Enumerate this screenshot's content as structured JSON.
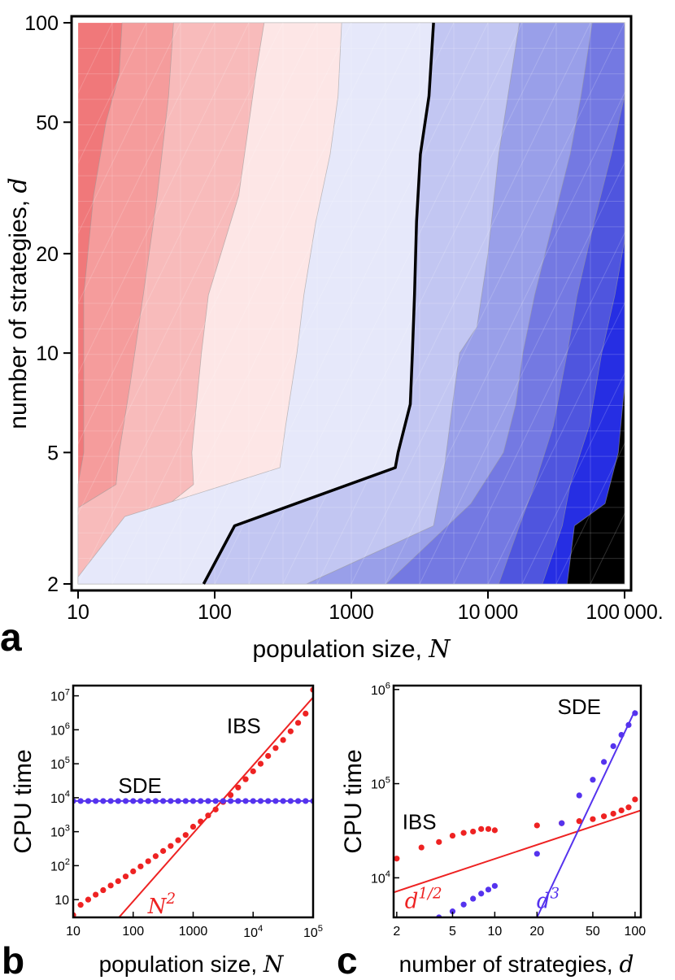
{
  "chart_data": [
    {
      "id": "a",
      "type": "heatmap",
      "panel_label": "a",
      "xlabel_text": "population size, ",
      "xlabel_var": "N",
      "ylabel_text": "number of strategies, ",
      "ylabel_var": "d",
      "xscale": "log",
      "yscale": "log",
      "xlim": [
        10,
        100000
      ],
      "ylim": [
        2,
        100
      ],
      "xticks": [
        10,
        100,
        1000,
        10000,
        100000
      ],
      "xtick_labels": [
        "10",
        "100",
        "1000",
        "10 000",
        "100 000."
      ],
      "yticks": [
        2,
        5,
        10,
        20,
        50,
        100
      ],
      "ytick_labels": [
        "2",
        "5",
        "10",
        "20",
        "50",
        "100"
      ],
      "colors": [
        "#f0787a",
        "#f59c9c",
        "#f8bbbb",
        "#fde6e6",
        "#e6e8fa",
        "#c2c6f2",
        "#999fe9",
        "#7479e2",
        "#4f55de",
        "#262ee3"
      ],
      "contours": [
        [
          [
            21,
            100
          ],
          [
            20,
            70
          ],
          [
            16,
            50
          ],
          [
            13,
            30
          ],
          [
            11,
            15
          ],
          [
            11,
            5
          ],
          [
            10,
            4
          ]
        ],
        [
          [
            50,
            100
          ],
          [
            46,
            60
          ],
          [
            38,
            30
          ],
          [
            30,
            15
          ],
          [
            24,
            8
          ],
          [
            20,
            5
          ],
          [
            19,
            4
          ],
          [
            10,
            3.4
          ]
        ],
        [
          [
            230,
            100
          ],
          [
            200,
            70
          ],
          [
            150,
            30
          ],
          [
            90,
            15
          ],
          [
            80,
            10
          ],
          [
            68,
            5
          ],
          [
            70,
            4
          ],
          [
            10,
            2.1
          ]
        ],
        [
          [
            850,
            100
          ],
          [
            800,
            60
          ],
          [
            700,
            40
          ],
          [
            550,
            25
          ],
          [
            450,
            15
          ],
          [
            400,
            10
          ],
          [
            330,
            6
          ],
          [
            300,
            4.5
          ],
          [
            22,
            3.2
          ],
          [
            10,
            2.1
          ]
        ],
        [
          [
            4000,
            100
          ],
          [
            3700,
            60
          ],
          [
            3200,
            40
          ],
          [
            3000,
            25
          ],
          [
            2900,
            15
          ],
          [
            2800,
            10
          ],
          [
            2700,
            7
          ],
          [
            2200,
            5
          ],
          [
            2100,
            4.5
          ],
          [
            140,
            3
          ],
          [
            83,
            2
          ]
        ],
        [
          [
            17000,
            100
          ],
          [
            14000,
            60
          ],
          [
            12000,
            40
          ],
          [
            10000,
            20
          ],
          [
            8300,
            12
          ],
          [
            6200,
            10
          ],
          [
            5500,
            7
          ],
          [
            4800,
            4.5
          ],
          [
            4000,
            3
          ],
          [
            470,
            2
          ]
        ],
        [
          [
            58000,
            100
          ],
          [
            48000,
            60
          ],
          [
            40000,
            40
          ],
          [
            30000,
            25
          ],
          [
            22000,
            15
          ],
          [
            18000,
            10
          ],
          [
            16000,
            7
          ],
          [
            13000,
            5
          ],
          [
            7500,
            3.5
          ],
          [
            1800,
            2
          ]
        ],
        [
          [
            100000,
            60
          ],
          [
            80000,
            40
          ],
          [
            60000,
            25
          ],
          [
            45000,
            15
          ],
          [
            38000,
            10
          ],
          [
            30000,
            6
          ],
          [
            22000,
            4
          ],
          [
            17000,
            3
          ],
          [
            12000,
            2
          ]
        ],
        [
          [
            100000,
            22
          ],
          [
            85000,
            15
          ],
          [
            68000,
            10
          ],
          [
            55000,
            6
          ],
          [
            40000,
            4
          ],
          [
            35000,
            3
          ],
          [
            25000,
            2
          ]
        ],
        [
          [
            100000,
            8
          ],
          [
            90000,
            5
          ],
          [
            72000,
            3.5
          ],
          [
            43000,
            3
          ],
          [
            38000,
            2
          ]
        ]
      ],
      "critical_index": 4
    },
    {
      "id": "b",
      "type": "scatter",
      "panel_label": "b",
      "ylabel": "CPU time",
      "xlabel_text": "population size, ",
      "xlabel_var": "N",
      "xscale": "log",
      "yscale": "log",
      "xlim": [
        10,
        100000
      ],
      "ylim": [
        3,
        20000000
      ],
      "xtick_labels": [
        "10",
        "100",
        "1000"
      ],
      "xtick_values": [
        10,
        100,
        1000
      ],
      "xtick_pow": [
        {
          "base": "10",
          "exp": "4",
          "value": 10000
        },
        {
          "base": "10",
          "exp": "5",
          "value": 100000
        }
      ],
      "ytick_plain": [
        {
          "label": "10",
          "value": 10
        }
      ],
      "ytick_pow": [
        {
          "base": "10",
          "exp": "2",
          "value": 100
        },
        {
          "base": "10",
          "exp": "3",
          "value": 1000
        },
        {
          "base": "10",
          "exp": "4",
          "value": 10000
        },
        {
          "base": "10",
          "exp": "5",
          "value": 100000
        },
        {
          "base": "10",
          "exp": "6",
          "value": 1000000
        },
        {
          "base": "10",
          "exp": "7",
          "value": 10000000
        }
      ],
      "series": [
        {
          "name": "IBS",
          "color": "#ee2222",
          "x": [
            10,
            13.3,
            17.8,
            23.7,
            31.6,
            42.2,
            56.2,
            75,
            100,
            133,
            178,
            237,
            316,
            422,
            562,
            750,
            1000,
            1334,
            1778,
            2371,
            3162,
            4217,
            5623,
            7499,
            10000,
            13335,
            17783,
            23714,
            31623,
            42170,
            56234,
            74989,
            100000
          ],
          "y": [
            3.5,
            7,
            10,
            14,
            19,
            26,
            35,
            48,
            68,
            95,
            135,
            190,
            270,
            380,
            560,
            800,
            1400,
            2000,
            3000,
            4500,
            7500,
            12000,
            20000,
            35000,
            60000,
            100000,
            170000,
            290000,
            500000,
            900000,
            1600000,
            3000000,
            15000000
          ]
        },
        {
          "name": "SDE",
          "color": "#5533ee",
          "x": [
            10,
            13.3,
            17.8,
            23.7,
            31.6,
            42.2,
            56.2,
            75,
            100,
            133,
            178,
            237,
            316,
            422,
            562,
            750,
            1000,
            1334,
            1778,
            2371,
            3162,
            4217,
            5623,
            7499,
            10000,
            13335,
            17783,
            23714,
            31623,
            42170,
            56234,
            74989,
            100000
          ],
          "y": [
            8000,
            8000,
            8000,
            8000,
            8000,
            8000,
            8000,
            8000,
            8000,
            8000,
            8000,
            8000,
            8000,
            8000,
            8000,
            8000,
            8000,
            8000,
            8000,
            8000,
            8000,
            8000,
            8000,
            8000,
            8000,
            8000,
            8000,
            8000,
            8000,
            8000,
            8000,
            8000,
            8000
          ]
        }
      ],
      "fit_lines": [
        {
          "name": "N2",
          "color": "#ee2222",
          "x": [
            58,
            100000
          ],
          "y": [
            3,
            9000000
          ]
        },
        {
          "name": "SDE-fit",
          "color": "#5533ee",
          "x": [
            10,
            100000
          ],
          "y": [
            8000,
            8000
          ]
        }
      ],
      "annotations": [
        {
          "text": "IBS",
          "color": "#ee2222",
          "x": 7000,
          "y": 800000
        },
        {
          "text": "SDE",
          "color": "#5533ee",
          "x": 130,
          "y": 14000
        }
      ],
      "fit_label": {
        "base": "N",
        "exp": "2",
        "color": "#ee2222",
        "x": 300,
        "y": 4
      }
    },
    {
      "id": "c",
      "type": "scatter",
      "panel_label": "c",
      "ylabel": "CPU time",
      "xlabel_text": "number of strategies, ",
      "xlabel_var": "d",
      "xscale": "log",
      "yscale": "log",
      "xlim": [
        1.9,
        110
      ],
      "ylim": [
        3800,
        1100000
      ],
      "xtick_labels": [
        "2",
        "5",
        "10",
        "20",
        "50",
        "100"
      ],
      "xtick_values": [
        2,
        5,
        10,
        20,
        50,
        100
      ],
      "ytick_pow": [
        {
          "base": "10",
          "exp": "4",
          "value": 10000
        },
        {
          "base": "10",
          "exp": "5",
          "value": 100000
        },
        {
          "base": "10",
          "exp": "6",
          "value": 1000000
        }
      ],
      "series": [
        {
          "name": "IBS",
          "color": "#ee2222",
          "x": [
            2,
            3,
            4,
            5,
            6,
            7,
            8,
            9,
            10,
            20,
            30,
            40,
            50,
            60,
            70,
            80,
            90,
            100
          ],
          "y": [
            16000,
            21000,
            24000,
            28000,
            30000,
            31000,
            33000,
            33000,
            32000,
            36000,
            38000,
            40000,
            42000,
            45000,
            48000,
            52000,
            56000,
            68000
          ]
        },
        {
          "name": "SDE",
          "color": "#5533ee",
          "x": [
            4,
            5,
            6,
            7,
            8,
            9,
            10,
            20,
            30,
            40,
            50,
            60,
            70,
            80,
            90,
            100
          ],
          "y": [
            3800,
            4400,
            5200,
            6000,
            6800,
            7500,
            8200,
            18000,
            38000,
            75000,
            110000,
            170000,
            250000,
            330000,
            420000,
            560000
          ]
        }
      ],
      "fit_lines": [
        {
          "name": "d12",
          "color": "#ee2222",
          "x": [
            1.9,
            110
          ],
          "y": [
            7000,
            52000
          ]
        },
        {
          "name": "d3",
          "color": "#5533ee",
          "x": [
            20,
            100
          ],
          "y": [
            3800,
            600000
          ]
        }
      ],
      "annotations": [
        {
          "text": "IBS",
          "color": "#ee2222",
          "x": 2.9,
          "y": 33000
        },
        {
          "text": "SDE",
          "color": "#5533ee",
          "x": 40,
          "y": 550000
        }
      ],
      "fit_labels": [
        {
          "base": "d",
          "exp": "1/2",
          "color": "#ee2222",
          "x": 3.1,
          "y": 4800
        },
        {
          "base": "d",
          "exp": "3",
          "color": "#5533ee",
          "x": 24,
          "y": 4800
        }
      ]
    }
  ]
}
